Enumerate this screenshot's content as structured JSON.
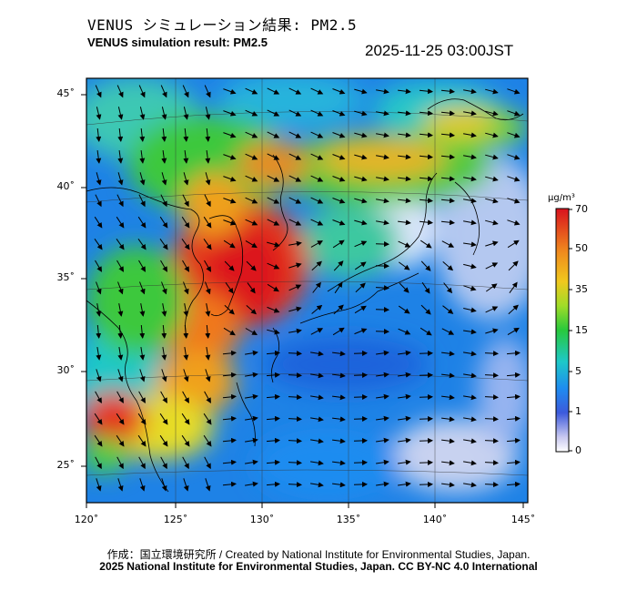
{
  "header": {
    "title": "VENUS シミュレーション結果: PM2.5",
    "subtitle": "VENUS simulation result: PM2.5",
    "timestamp": "2025-11-25 03:00JST"
  },
  "map": {
    "lat_labels": [
      "45˚",
      "40˚",
      "35˚",
      "30˚",
      "25˚"
    ],
    "lon_labels": [
      "120˚",
      "125˚",
      "130˚",
      "135˚",
      "140˚",
      "145˚"
    ],
    "lon_range": [
      120,
      145
    ],
    "lat_range": [
      23,
      46
    ]
  },
  "colorbar": {
    "unit": "μg/m³",
    "ticks": [
      "70",
      "50",
      "35",
      "15",
      "5",
      "1",
      "0"
    ],
    "colors": {
      "c70": "#d8121e",
      "c50": "#f06c1a",
      "c35": "#f0c81e",
      "c15": "#28c83c",
      "c5": "#1ec8c8",
      "c1": "#1e64dc",
      "c0": "#ffffff"
    }
  },
  "footer": {
    "credit": "作成：国立環境研究所 / Created by National Institute for Environmental Studies, Japan.",
    "copyright": "2025 National Institute for Environmental Studies, Japan. CC BY-NC 4.0 International"
  }
}
